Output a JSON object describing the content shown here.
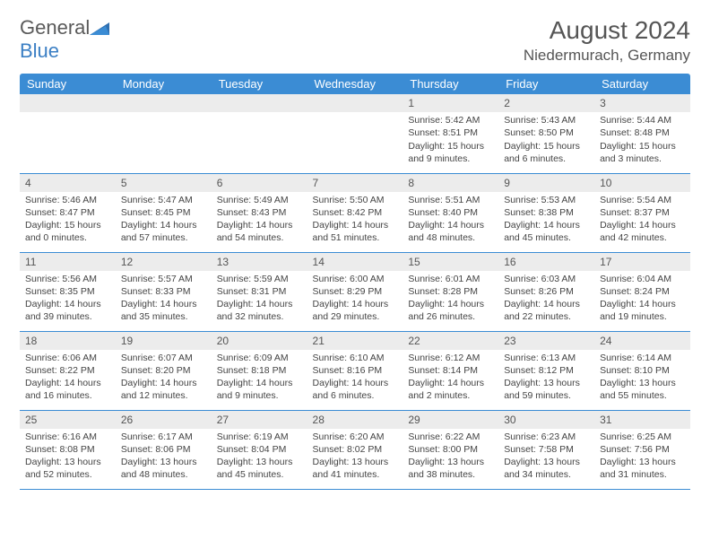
{
  "logo": {
    "text_general": "General",
    "text_blue": "Blue"
  },
  "header": {
    "title": "August 2024",
    "subtitle": "Niedermurach, Germany"
  },
  "dayNames": [
    "Sunday",
    "Monday",
    "Tuesday",
    "Wednesday",
    "Thursday",
    "Friday",
    "Saturday"
  ],
  "colors": {
    "header_bg": "#3b8cd4",
    "daynum_bg": "#ececec",
    "border": "#3b8cd4"
  },
  "weeks": [
    [
      null,
      null,
      null,
      null,
      {
        "n": "1",
        "sr": "Sunrise: 5:42 AM",
        "ss": "Sunset: 8:51 PM",
        "d1": "Daylight: 15 hours",
        "d2": "and 9 minutes."
      },
      {
        "n": "2",
        "sr": "Sunrise: 5:43 AM",
        "ss": "Sunset: 8:50 PM",
        "d1": "Daylight: 15 hours",
        "d2": "and 6 minutes."
      },
      {
        "n": "3",
        "sr": "Sunrise: 5:44 AM",
        "ss": "Sunset: 8:48 PM",
        "d1": "Daylight: 15 hours",
        "d2": "and 3 minutes."
      }
    ],
    [
      {
        "n": "4",
        "sr": "Sunrise: 5:46 AM",
        "ss": "Sunset: 8:47 PM",
        "d1": "Daylight: 15 hours",
        "d2": "and 0 minutes."
      },
      {
        "n": "5",
        "sr": "Sunrise: 5:47 AM",
        "ss": "Sunset: 8:45 PM",
        "d1": "Daylight: 14 hours",
        "d2": "and 57 minutes."
      },
      {
        "n": "6",
        "sr": "Sunrise: 5:49 AM",
        "ss": "Sunset: 8:43 PM",
        "d1": "Daylight: 14 hours",
        "d2": "and 54 minutes."
      },
      {
        "n": "7",
        "sr": "Sunrise: 5:50 AM",
        "ss": "Sunset: 8:42 PM",
        "d1": "Daylight: 14 hours",
        "d2": "and 51 minutes."
      },
      {
        "n": "8",
        "sr": "Sunrise: 5:51 AM",
        "ss": "Sunset: 8:40 PM",
        "d1": "Daylight: 14 hours",
        "d2": "and 48 minutes."
      },
      {
        "n": "9",
        "sr": "Sunrise: 5:53 AM",
        "ss": "Sunset: 8:38 PM",
        "d1": "Daylight: 14 hours",
        "d2": "and 45 minutes."
      },
      {
        "n": "10",
        "sr": "Sunrise: 5:54 AM",
        "ss": "Sunset: 8:37 PM",
        "d1": "Daylight: 14 hours",
        "d2": "and 42 minutes."
      }
    ],
    [
      {
        "n": "11",
        "sr": "Sunrise: 5:56 AM",
        "ss": "Sunset: 8:35 PM",
        "d1": "Daylight: 14 hours",
        "d2": "and 39 minutes."
      },
      {
        "n": "12",
        "sr": "Sunrise: 5:57 AM",
        "ss": "Sunset: 8:33 PM",
        "d1": "Daylight: 14 hours",
        "d2": "and 35 minutes."
      },
      {
        "n": "13",
        "sr": "Sunrise: 5:59 AM",
        "ss": "Sunset: 8:31 PM",
        "d1": "Daylight: 14 hours",
        "d2": "and 32 minutes."
      },
      {
        "n": "14",
        "sr": "Sunrise: 6:00 AM",
        "ss": "Sunset: 8:29 PM",
        "d1": "Daylight: 14 hours",
        "d2": "and 29 minutes."
      },
      {
        "n": "15",
        "sr": "Sunrise: 6:01 AM",
        "ss": "Sunset: 8:28 PM",
        "d1": "Daylight: 14 hours",
        "d2": "and 26 minutes."
      },
      {
        "n": "16",
        "sr": "Sunrise: 6:03 AM",
        "ss": "Sunset: 8:26 PM",
        "d1": "Daylight: 14 hours",
        "d2": "and 22 minutes."
      },
      {
        "n": "17",
        "sr": "Sunrise: 6:04 AM",
        "ss": "Sunset: 8:24 PM",
        "d1": "Daylight: 14 hours",
        "d2": "and 19 minutes."
      }
    ],
    [
      {
        "n": "18",
        "sr": "Sunrise: 6:06 AM",
        "ss": "Sunset: 8:22 PM",
        "d1": "Daylight: 14 hours",
        "d2": "and 16 minutes."
      },
      {
        "n": "19",
        "sr": "Sunrise: 6:07 AM",
        "ss": "Sunset: 8:20 PM",
        "d1": "Daylight: 14 hours",
        "d2": "and 12 minutes."
      },
      {
        "n": "20",
        "sr": "Sunrise: 6:09 AM",
        "ss": "Sunset: 8:18 PM",
        "d1": "Daylight: 14 hours",
        "d2": "and 9 minutes."
      },
      {
        "n": "21",
        "sr": "Sunrise: 6:10 AM",
        "ss": "Sunset: 8:16 PM",
        "d1": "Daylight: 14 hours",
        "d2": "and 6 minutes."
      },
      {
        "n": "22",
        "sr": "Sunrise: 6:12 AM",
        "ss": "Sunset: 8:14 PM",
        "d1": "Daylight: 14 hours",
        "d2": "and 2 minutes."
      },
      {
        "n": "23",
        "sr": "Sunrise: 6:13 AM",
        "ss": "Sunset: 8:12 PM",
        "d1": "Daylight: 13 hours",
        "d2": "and 59 minutes."
      },
      {
        "n": "24",
        "sr": "Sunrise: 6:14 AM",
        "ss": "Sunset: 8:10 PM",
        "d1": "Daylight: 13 hours",
        "d2": "and 55 minutes."
      }
    ],
    [
      {
        "n": "25",
        "sr": "Sunrise: 6:16 AM",
        "ss": "Sunset: 8:08 PM",
        "d1": "Daylight: 13 hours",
        "d2": "and 52 minutes."
      },
      {
        "n": "26",
        "sr": "Sunrise: 6:17 AM",
        "ss": "Sunset: 8:06 PM",
        "d1": "Daylight: 13 hours",
        "d2": "and 48 minutes."
      },
      {
        "n": "27",
        "sr": "Sunrise: 6:19 AM",
        "ss": "Sunset: 8:04 PM",
        "d1": "Daylight: 13 hours",
        "d2": "and 45 minutes."
      },
      {
        "n": "28",
        "sr": "Sunrise: 6:20 AM",
        "ss": "Sunset: 8:02 PM",
        "d1": "Daylight: 13 hours",
        "d2": "and 41 minutes."
      },
      {
        "n": "29",
        "sr": "Sunrise: 6:22 AM",
        "ss": "Sunset: 8:00 PM",
        "d1": "Daylight: 13 hours",
        "d2": "and 38 minutes."
      },
      {
        "n": "30",
        "sr": "Sunrise: 6:23 AM",
        "ss": "Sunset: 7:58 PM",
        "d1": "Daylight: 13 hours",
        "d2": "and 34 minutes."
      },
      {
        "n": "31",
        "sr": "Sunrise: 6:25 AM",
        "ss": "Sunset: 7:56 PM",
        "d1": "Daylight: 13 hours",
        "d2": "and 31 minutes."
      }
    ]
  ]
}
